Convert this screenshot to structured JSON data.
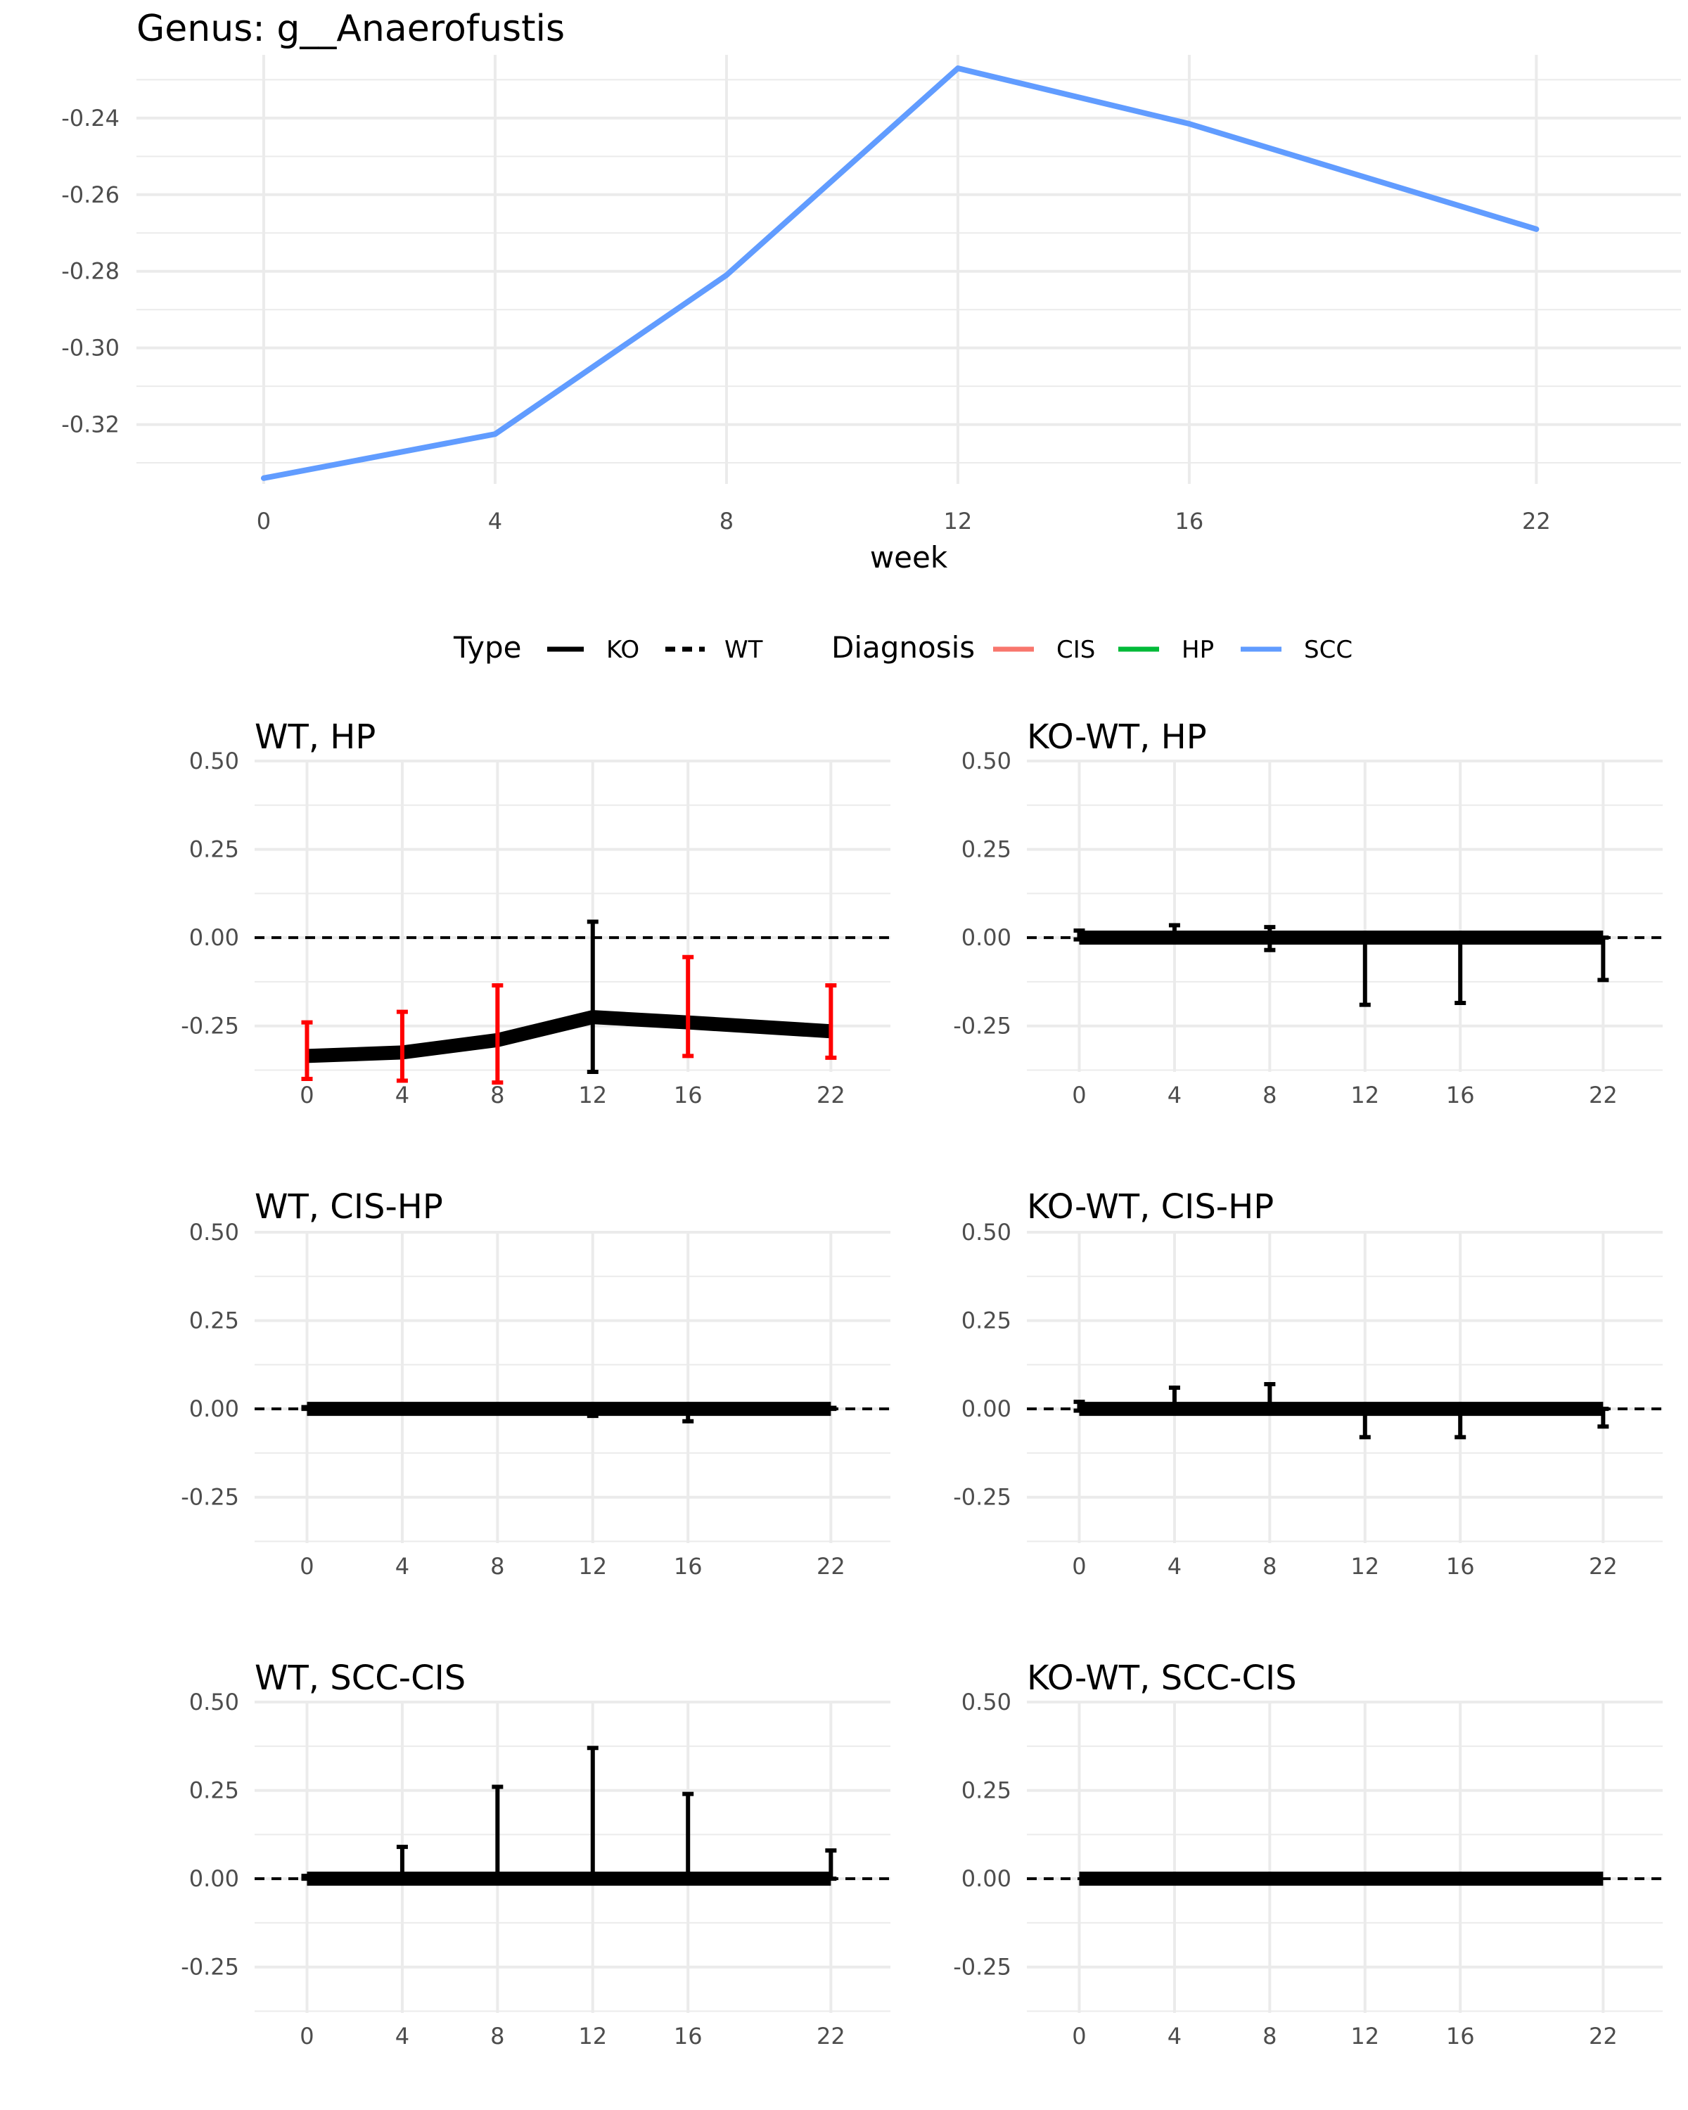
{
  "colors": {
    "grid": "#ebebeb",
    "scc": "#619CFF",
    "cis": "#F8766D",
    "hp": "#00BA38",
    "black": "#000000",
    "red": "#FF0000",
    "axis_text": "#4d4d4d"
  },
  "chart_data": [
    {
      "type": "line",
      "title": "Genus: g__Anaerofustis",
      "xlabel": "week",
      "ylabel": "",
      "x": [
        0,
        4,
        8,
        12,
        16,
        22
      ],
      "x_ticks": [
        "0",
        "4",
        "8",
        "12",
        "16",
        "22"
      ],
      "y_ticks": [
        "-0.24",
        "-0.26",
        "-0.28",
        "-0.30",
        "-0.32"
      ],
      "xlim": [
        -2.2,
        24.5
      ],
      "ylim": [
        -0.3355,
        -0.2235
      ],
      "grid": true,
      "series": [
        {
          "name": "SCC",
          "color": "#619CFF",
          "values": [
            -0.334,
            -0.3225,
            -0.281,
            -0.227,
            -0.2415,
            -0.269
          ]
        }
      ],
      "legend": {
        "placement": "bottom",
        "type_title": "Type",
        "type_items": [
          {
            "label": "KO",
            "dash": "solid"
          },
          {
            "label": "WT",
            "dash": "dashed"
          }
        ],
        "diagnosis_title": "Diagnosis",
        "diagnosis_items": [
          {
            "label": "CIS",
            "color": "#F8766D"
          },
          {
            "label": "HP",
            "color": "#00BA38"
          },
          {
            "label": "SCC",
            "color": "#619CFF"
          }
        ]
      }
    },
    {
      "type": "line",
      "title": "WT, HP",
      "x": [
        0,
        4,
        8,
        12,
        16,
        22
      ],
      "xlim": [
        -2.2,
        24.5
      ],
      "ylim": [
        -0.38,
        0.5
      ],
      "x_ticks": [
        "0",
        "4",
        "8",
        "12",
        "16",
        "22"
      ],
      "y_ticks": [
        "0.50",
        "0.25",
        "0.00",
        "-0.25"
      ],
      "reference_line": 0,
      "grid": true,
      "series": [
        {
          "values": [
            -0.335,
            -0.325,
            -0.29,
            -0.225,
            -0.24,
            -0.265
          ]
        }
      ],
      "error_bars": [
        {
          "x": 0,
          "low": -0.4,
          "high": -0.24,
          "color": "red"
        },
        {
          "x": 4,
          "low": -0.405,
          "high": -0.21,
          "color": "red"
        },
        {
          "x": 8,
          "low": -0.41,
          "high": -0.135,
          "color": "red"
        },
        {
          "x": 12,
          "low": -0.38,
          "high": 0.045,
          "color": "black"
        },
        {
          "x": 16,
          "low": -0.335,
          "high": -0.055,
          "color": "red"
        },
        {
          "x": 22,
          "low": -0.34,
          "high": -0.135,
          "color": "red"
        }
      ]
    },
    {
      "type": "line",
      "title": "KO-WT, HP",
      "x": [
        0,
        4,
        8,
        12,
        16,
        22
      ],
      "xlim": [
        -2.2,
        24.5
      ],
      "ylim": [
        -0.38,
        0.5
      ],
      "x_ticks": [
        "0",
        "4",
        "8",
        "12",
        "16",
        "22"
      ],
      "y_ticks": [
        "0.50",
        "0.25",
        "0.00",
        "-0.25"
      ],
      "reference_line": 0,
      "grid": true,
      "series": [
        {
          "values": [
            0,
            0,
            0,
            0,
            0,
            0
          ]
        }
      ],
      "error_bars": [
        {
          "x": 0,
          "low": -0.005,
          "high": 0.02,
          "color": "black"
        },
        {
          "x": 4,
          "low": -0.005,
          "high": 0.035,
          "color": "black"
        },
        {
          "x": 8,
          "low": -0.035,
          "high": 0.03,
          "color": "black"
        },
        {
          "x": 12,
          "low": -0.19,
          "high": 0,
          "color": "black"
        },
        {
          "x": 16,
          "low": -0.185,
          "high": 0,
          "color": "black"
        },
        {
          "x": 22,
          "low": -0.12,
          "high": 0,
          "color": "black"
        }
      ]
    },
    {
      "type": "line",
      "title": "WT, CIS-HP",
      "x": [
        0,
        4,
        8,
        12,
        16,
        22
      ],
      "xlim": [
        -2.2,
        24.5
      ],
      "ylim": [
        -0.38,
        0.5
      ],
      "x_ticks": [
        "0",
        "4",
        "8",
        "12",
        "16",
        "22"
      ],
      "y_ticks": [
        "0.50",
        "0.25",
        "0.00",
        "-0.25"
      ],
      "reference_line": 0,
      "grid": true,
      "series": [
        {
          "values": [
            0,
            0,
            0,
            0,
            0,
            0
          ]
        }
      ],
      "error_bars": [
        {
          "x": 0,
          "low": 0,
          "high": 0.005,
          "color": "black"
        },
        {
          "x": 12,
          "low": -0.02,
          "high": 0,
          "color": "black"
        },
        {
          "x": 16,
          "low": -0.035,
          "high": 0,
          "color": "black"
        },
        {
          "x": 22,
          "low": 0,
          "high": 0.003,
          "color": "black"
        }
      ]
    },
    {
      "type": "line",
      "title": "KO-WT, CIS-HP",
      "x": [
        0,
        4,
        8,
        12,
        16,
        22
      ],
      "xlim": [
        -2.2,
        24.5
      ],
      "ylim": [
        -0.38,
        0.5
      ],
      "x_ticks": [
        "0",
        "4",
        "8",
        "12",
        "16",
        "22"
      ],
      "y_ticks": [
        "0.50",
        "0.25",
        "0.00",
        "-0.25"
      ],
      "reference_line": 0,
      "grid": true,
      "series": [
        {
          "values": [
            0,
            0,
            0,
            0,
            0,
            0
          ]
        }
      ],
      "error_bars": [
        {
          "x": 0,
          "low": -0.005,
          "high": 0.02,
          "color": "black"
        },
        {
          "x": 4,
          "low": 0,
          "high": 0.06,
          "color": "black"
        },
        {
          "x": 8,
          "low": 0,
          "high": 0.07,
          "color": "black"
        },
        {
          "x": 12,
          "low": -0.08,
          "high": 0,
          "color": "black"
        },
        {
          "x": 16,
          "low": -0.08,
          "high": 0,
          "color": "black"
        },
        {
          "x": 22,
          "low": -0.05,
          "high": 0,
          "color": "black"
        }
      ]
    },
    {
      "type": "line",
      "title": "WT, SCC-CIS",
      "x": [
        0,
        4,
        8,
        12,
        16,
        22
      ],
      "xlim": [
        -2.2,
        24.5
      ],
      "ylim": [
        -0.38,
        0.5
      ],
      "x_ticks": [
        "0",
        "4",
        "8",
        "12",
        "16",
        "22"
      ],
      "y_ticks": [
        "0.50",
        "0.25",
        "0.00",
        "-0.25"
      ],
      "reference_line": 0,
      "grid": true,
      "series": [
        {
          "values": [
            0,
            0,
            0,
            0,
            0,
            0
          ]
        }
      ],
      "error_bars": [
        {
          "x": 0,
          "low": 0,
          "high": 0.008,
          "color": "black"
        },
        {
          "x": 4,
          "low": 0,
          "high": 0.09,
          "color": "black"
        },
        {
          "x": 8,
          "low": 0,
          "high": 0.26,
          "color": "black"
        },
        {
          "x": 12,
          "low": 0,
          "high": 0.37,
          "color": "black"
        },
        {
          "x": 16,
          "low": 0,
          "high": 0.24,
          "color": "black"
        },
        {
          "x": 22,
          "low": 0,
          "high": 0.08,
          "color": "black"
        }
      ]
    },
    {
      "type": "line",
      "title": "KO-WT, SCC-CIS",
      "x": [
        0,
        4,
        8,
        12,
        16,
        22
      ],
      "xlim": [
        -2.2,
        24.5
      ],
      "ylim": [
        -0.38,
        0.5
      ],
      "x_ticks": [
        "0",
        "4",
        "8",
        "12",
        "16",
        "22"
      ],
      "y_ticks": [
        "0.50",
        "0.25",
        "0.00",
        "-0.25"
      ],
      "reference_line": 0,
      "grid": true,
      "series": [
        {
          "values": [
            0,
            0,
            0,
            0,
            0,
            0
          ]
        }
      ],
      "error_bars": []
    }
  ]
}
